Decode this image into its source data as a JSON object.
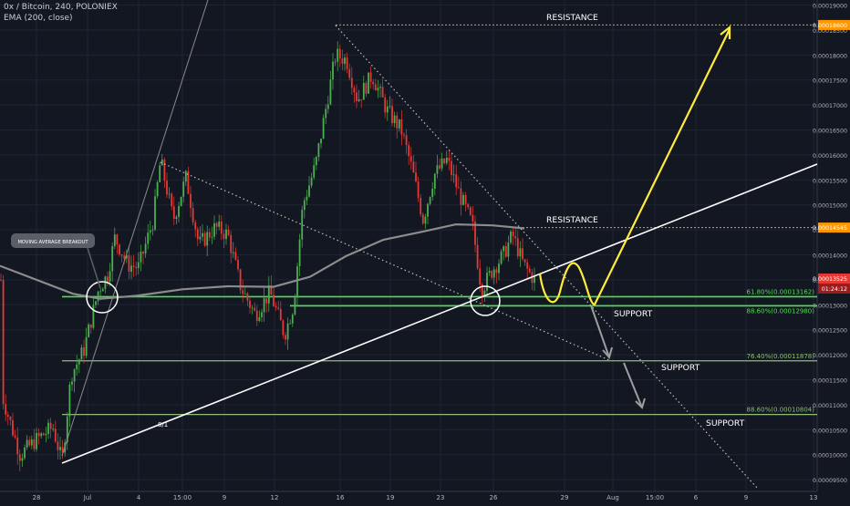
{
  "header": {
    "symbol_line": "0x / Bitcoin, 240, POLONIEX",
    "indicator_line": "EMA (200, close)"
  },
  "colors": {
    "background": "#131722",
    "candle_up": "#4caf50",
    "candle_down": "#e53935",
    "ema": "#8c8c8c",
    "fib_bright": "#4ce04c",
    "fib_dim": "#8fbc7a",
    "resistance": "#ff9800",
    "trendline": "#ffffff",
    "projection": "#ffeb3b",
    "price_tag_current": "#e53935"
  },
  "chart_data": {
    "type": "line",
    "title": "0x / Bitcoin, 240, POLONIEX",
    "indicator": "EMA (200, close)",
    "xlabel": "",
    "ylabel": "",
    "ylim": [
      9.44e-05,
      0.0001902
    ],
    "grid": true,
    "x_ticks": [
      "28",
      "Jul",
      "4",
      "15:00",
      "9",
      "12",
      "16",
      "19",
      "23",
      "26",
      "29",
      "Aug",
      "15:00",
      "6",
      "9",
      "13"
    ],
    "y_ticks": [
      "0.00019000",
      "0.00018500",
      "0.00018000",
      "0.00017500",
      "0.00017000",
      "0.00016500",
      "0.00016000",
      "0.00015500",
      "0.00015000",
      "0.00014500",
      "0.00014000",
      "0.00013500",
      "0.00013000",
      "0.00012500",
      "0.00012000",
      "0.00011500",
      "0.00011000",
      "0.00010500",
      "0.00010000",
      "0.00009500"
    ],
    "price_tags": [
      {
        "label": "0.00018600",
        "value": 0.000186,
        "kind": "resistance"
      },
      {
        "label": "0.00014545",
        "value": 0.00014545,
        "kind": "resistance"
      },
      {
        "label": "0.00013525",
        "value": 0.00013525,
        "kind": "current"
      },
      {
        "label": "01:24:12",
        "value": 0.00013325,
        "kind": "countdown"
      }
    ],
    "series": [
      {
        "name": "EMA (200, close)",
        "x": [
          "28",
          "Jul",
          "4",
          "15:00",
          "9",
          "12",
          "16",
          "19",
          "23",
          "26"
        ],
        "values": [
          0.0001378,
          0.0001319,
          0.0001322,
          0.0001332,
          0.0001338,
          0.000134,
          0.0001398,
          0.0001448,
          0.0001461,
          0.0001455
        ]
      },
      {
        "name": "Price",
        "x": [
          "28",
          "Jul",
          "4",
          "15:00",
          "9",
          "12",
          "16",
          "19",
          "23",
          "26"
        ],
        "values": [
          0.0001,
          0.000135,
          0.0001455,
          0.000152,
          0.000142,
          0.000124,
          0.00018,
          0.00017,
          0.000148,
          0.0001352
        ]
      }
    ],
    "levels": [
      {
        "label": "RESISTANCE",
        "value": 0.000186
      },
      {
        "label": "RESISTANCE",
        "value": 0.00014545
      },
      {
        "label": "61.80%(0.00013162)",
        "value": 0.00013162
      },
      {
        "label": "88.60%(0.00012980)",
        "value": 0.0001298
      },
      {
        "label": "76.40%(0.00011878)",
        "value": 0.00011878
      },
      {
        "label": "88.60%(0.00010804)",
        "value": 0.00010804
      }
    ],
    "annotations": [
      "MOVING AVERAGE BREAKOUT",
      "SUPPORT",
      "SUPPORT",
      "SUPPORT",
      "8/1"
    ]
  }
}
